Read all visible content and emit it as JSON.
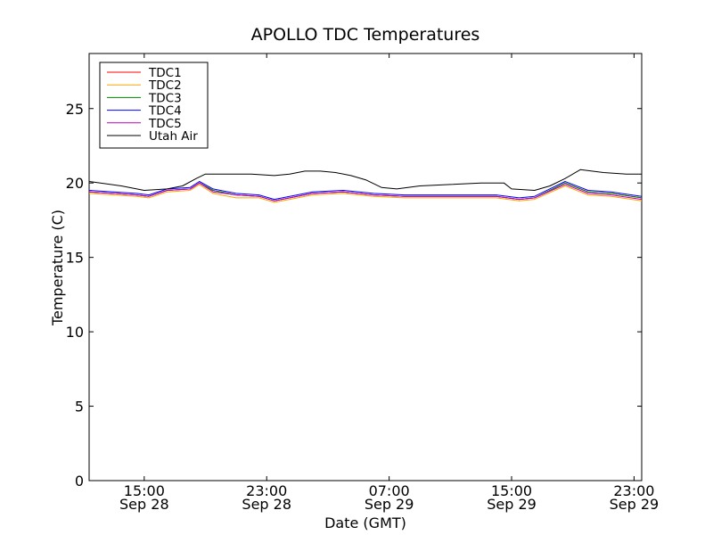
{
  "chart_data": {
    "type": "line",
    "title": "APOLLO TDC Temperatures",
    "xlabel": "Date (GMT)",
    "ylabel": "Temperature (C)",
    "ylim": [
      0,
      28.7
    ],
    "xlim_hours": [
      11.4,
      47.5
    ],
    "yticks": [
      0,
      5,
      10,
      15,
      20,
      25
    ],
    "xticks": [
      {
        "hour": 15,
        "time": "15:00",
        "date": "Sep 28"
      },
      {
        "hour": 23,
        "time": "23:00",
        "date": "Sep 28"
      },
      {
        "hour": 31,
        "time": "07:00",
        "date": "Sep 29"
      },
      {
        "hour": 39,
        "time": "15:00",
        "date": "Sep 29"
      },
      {
        "hour": 47,
        "time": "23:00",
        "date": "Sep 29"
      }
    ],
    "legend_position": "top-left",
    "series": [
      {
        "name": "TDC1",
        "color": "#ff0000",
        "x": [
          11.4,
          13,
          14.5,
          15.3,
          16.5,
          18,
          18.6,
          19.5,
          21,
          22.5,
          23.5,
          24.5,
          26,
          28,
          30,
          32,
          34,
          36,
          38,
          39.5,
          40.5,
          42.5,
          44,
          45.5,
          47.5
        ],
        "y": [
          19.4,
          19.3,
          19.2,
          19.1,
          19.5,
          19.6,
          20.0,
          19.5,
          19.2,
          19.1,
          18.8,
          19.0,
          19.3,
          19.4,
          19.2,
          19.1,
          19.1,
          19.1,
          19.1,
          18.9,
          19.0,
          20.0,
          19.4,
          19.3,
          19.0
        ]
      },
      {
        "name": "TDC2",
        "color": "#ffa500",
        "x": [
          11.4,
          13,
          14.5,
          15.3,
          16.5,
          18,
          18.6,
          19.5,
          21,
          22.5,
          23.5,
          24.5,
          26,
          28,
          30,
          32,
          34,
          36,
          38,
          39.5,
          40.5,
          42.5,
          44,
          45.5,
          47.5
        ],
        "y": [
          19.3,
          19.2,
          19.1,
          19.0,
          19.4,
          19.5,
          19.9,
          19.3,
          19.0,
          19.0,
          18.7,
          18.9,
          19.2,
          19.3,
          19.1,
          19.0,
          19.0,
          19.0,
          19.0,
          18.8,
          18.9,
          19.8,
          19.2,
          19.1,
          18.8
        ]
      },
      {
        "name": "TDC3",
        "color": "#008000",
        "x": [
          11.4,
          13,
          14.5,
          15.3,
          16.5,
          18,
          18.6,
          19.5,
          21,
          22.5,
          23.5,
          24.5,
          26,
          28,
          30,
          32,
          34,
          36,
          38,
          39.5,
          40.5,
          42.5,
          44,
          45.5,
          47.5
        ],
        "y": [
          19.4,
          19.3,
          19.2,
          19.1,
          19.5,
          19.6,
          20.0,
          19.5,
          19.2,
          19.1,
          18.8,
          19.0,
          19.3,
          19.4,
          19.2,
          19.1,
          19.1,
          19.1,
          19.1,
          18.9,
          19.0,
          20.0,
          19.4,
          19.3,
          19.0
        ]
      },
      {
        "name": "TDC4",
        "color": "#0000ff",
        "x": [
          11.4,
          13,
          14.5,
          15.3,
          16.5,
          18,
          18.6,
          19.5,
          21,
          22.5,
          23.5,
          24.5,
          26,
          28,
          30,
          32,
          34,
          36,
          38,
          39.5,
          40.5,
          42.5,
          44,
          45.5,
          47.5
        ],
        "y": [
          19.5,
          19.4,
          19.3,
          19.2,
          19.6,
          19.7,
          20.1,
          19.6,
          19.3,
          19.2,
          18.9,
          19.1,
          19.4,
          19.5,
          19.3,
          19.2,
          19.2,
          19.2,
          19.2,
          19.0,
          19.1,
          20.1,
          19.5,
          19.4,
          19.1
        ]
      },
      {
        "name": "TDC5",
        "color": "#bf00bf",
        "x": [
          11.4,
          13,
          14.5,
          15.3,
          16.5,
          18,
          18.6,
          19.5,
          21,
          22.5,
          23.5,
          24.5,
          26,
          28,
          30,
          32,
          34,
          36,
          38,
          39.5,
          40.5,
          42.5,
          44,
          45.5,
          47.5
        ],
        "y": [
          19.4,
          19.3,
          19.2,
          19.1,
          19.5,
          19.6,
          20.0,
          19.4,
          19.2,
          19.1,
          18.8,
          19.0,
          19.3,
          19.4,
          19.2,
          19.1,
          19.1,
          19.1,
          19.1,
          18.9,
          19.0,
          19.9,
          19.3,
          19.2,
          18.9
        ]
      },
      {
        "name": "Utah Air",
        "color": "#000000",
        "x": [
          11.4,
          13.5,
          15.0,
          16.5,
          17.5,
          18.4,
          19.0,
          20.0,
          22.0,
          23.5,
          24.5,
          25.5,
          26.5,
          27.5,
          28.5,
          29.5,
          30.5,
          31.5,
          33.0,
          35.0,
          37.0,
          38.5,
          39.0,
          40.5,
          41.5,
          42.5,
          43.5,
          45.0,
          46.5,
          47.5
        ],
        "y": [
          20.1,
          19.8,
          19.5,
          19.6,
          19.8,
          20.3,
          20.6,
          20.6,
          20.6,
          20.5,
          20.6,
          20.8,
          20.8,
          20.7,
          20.5,
          20.2,
          19.7,
          19.6,
          19.8,
          19.9,
          20.0,
          20.0,
          19.6,
          19.5,
          19.8,
          20.3,
          20.9,
          20.7,
          20.6,
          20.6
        ]
      }
    ]
  }
}
